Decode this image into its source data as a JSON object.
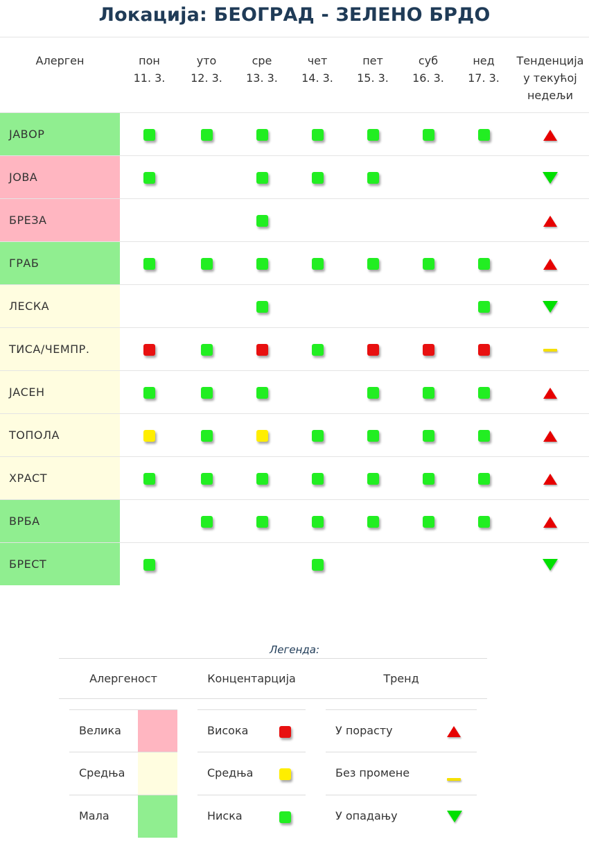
{
  "title": "Локација: БЕОГРАД - ЗЕЛЕНО БРДО",
  "header": {
    "allergen": "Алерген",
    "days": [
      {
        "day": "пон",
        "date": "11. 3."
      },
      {
        "day": "уто",
        "date": "12. 3."
      },
      {
        "day": "сре",
        "date": "13. 3."
      },
      {
        "day": "чет",
        "date": "14. 3."
      },
      {
        "day": "пет",
        "date": "15. 3."
      },
      {
        "day": "суб",
        "date": "16. 3."
      },
      {
        "day": "нед",
        "date": "17. 3."
      }
    ],
    "trend_l1": "Тенденција",
    "trend_l2": "у текућој",
    "trend_l3": "недељи"
  },
  "colors": {
    "allergenicity_high": "#ffb6c1",
    "allergenicity_medium": "#fffde0",
    "allergenicity_low": "#90ee90",
    "conc_high": "#e81010",
    "conc_medium": "#ffee00",
    "conc_low": "#22ee22",
    "trend_up": "#e60000",
    "trend_flat": "#f5e000",
    "trend_down": "#00e000"
  },
  "rows": [
    {
      "name": "ЈАВОР",
      "allergenicity": "low",
      "values": [
        "low",
        "low",
        "low",
        "low",
        "low",
        "low",
        "low"
      ],
      "trend": "up"
    },
    {
      "name": "ЈОВА",
      "allergenicity": "high",
      "values": [
        "low",
        null,
        "low",
        "low",
        "low",
        null,
        null
      ],
      "trend": "down"
    },
    {
      "name": "БРЕЗА",
      "allergenicity": "high",
      "values": [
        null,
        null,
        "low",
        null,
        null,
        null,
        null
      ],
      "trend": "up"
    },
    {
      "name": "ГРАБ",
      "allergenicity": "low",
      "values": [
        "low",
        "low",
        "low",
        "low",
        "low",
        "low",
        "low"
      ],
      "trend": "up"
    },
    {
      "name": "ЛЕСКА",
      "allergenicity": "medium",
      "values": [
        null,
        null,
        "low",
        null,
        null,
        null,
        "low"
      ],
      "trend": "down"
    },
    {
      "name": "ТИСА/ЧЕМПР.",
      "allergenicity": "medium",
      "values": [
        "high",
        "low",
        "high",
        "low",
        "high",
        "high",
        "high"
      ],
      "trend": "flat"
    },
    {
      "name": "ЈАСЕН",
      "allergenicity": "medium",
      "values": [
        "low",
        "low",
        "low",
        null,
        "low",
        "low",
        "low"
      ],
      "trend": "up"
    },
    {
      "name": "ТОПОЛА",
      "allergenicity": "medium",
      "values": [
        "medium",
        "low",
        "medium",
        "low",
        "low",
        "low",
        "low"
      ],
      "trend": "up"
    },
    {
      "name": "ХРАСТ",
      "allergenicity": "medium",
      "values": [
        "low",
        "low",
        "low",
        "low",
        "low",
        "low",
        "low"
      ],
      "trend": "up"
    },
    {
      "name": "ВРБА",
      "allergenicity": "low",
      "values": [
        null,
        "low",
        "low",
        "low",
        "low",
        "low",
        "low"
      ],
      "trend": "up"
    },
    {
      "name": "БРЕСТ",
      "allergenicity": "low",
      "values": [
        "low",
        null,
        null,
        "low",
        null,
        null,
        null
      ],
      "trend": "down"
    }
  ],
  "legend": {
    "title": "Легенда:",
    "col_allergenicity": "Алергеност",
    "col_concentration": "Концентарција",
    "col_trend": "Тренд",
    "allergenicity": [
      {
        "label": "Велика",
        "level": "high"
      },
      {
        "label": "Средња",
        "level": "medium"
      },
      {
        "label": "Мала",
        "level": "low"
      }
    ],
    "concentration": [
      {
        "label": "Висока",
        "level": "high"
      },
      {
        "label": "Средња",
        "level": "medium"
      },
      {
        "label": "Ниска",
        "level": "low"
      }
    ],
    "trend": [
      {
        "label": "У порасту",
        "kind": "up"
      },
      {
        "label": "Без промене",
        "kind": "flat"
      },
      {
        "label": "У опадању",
        "kind": "down"
      }
    ]
  }
}
